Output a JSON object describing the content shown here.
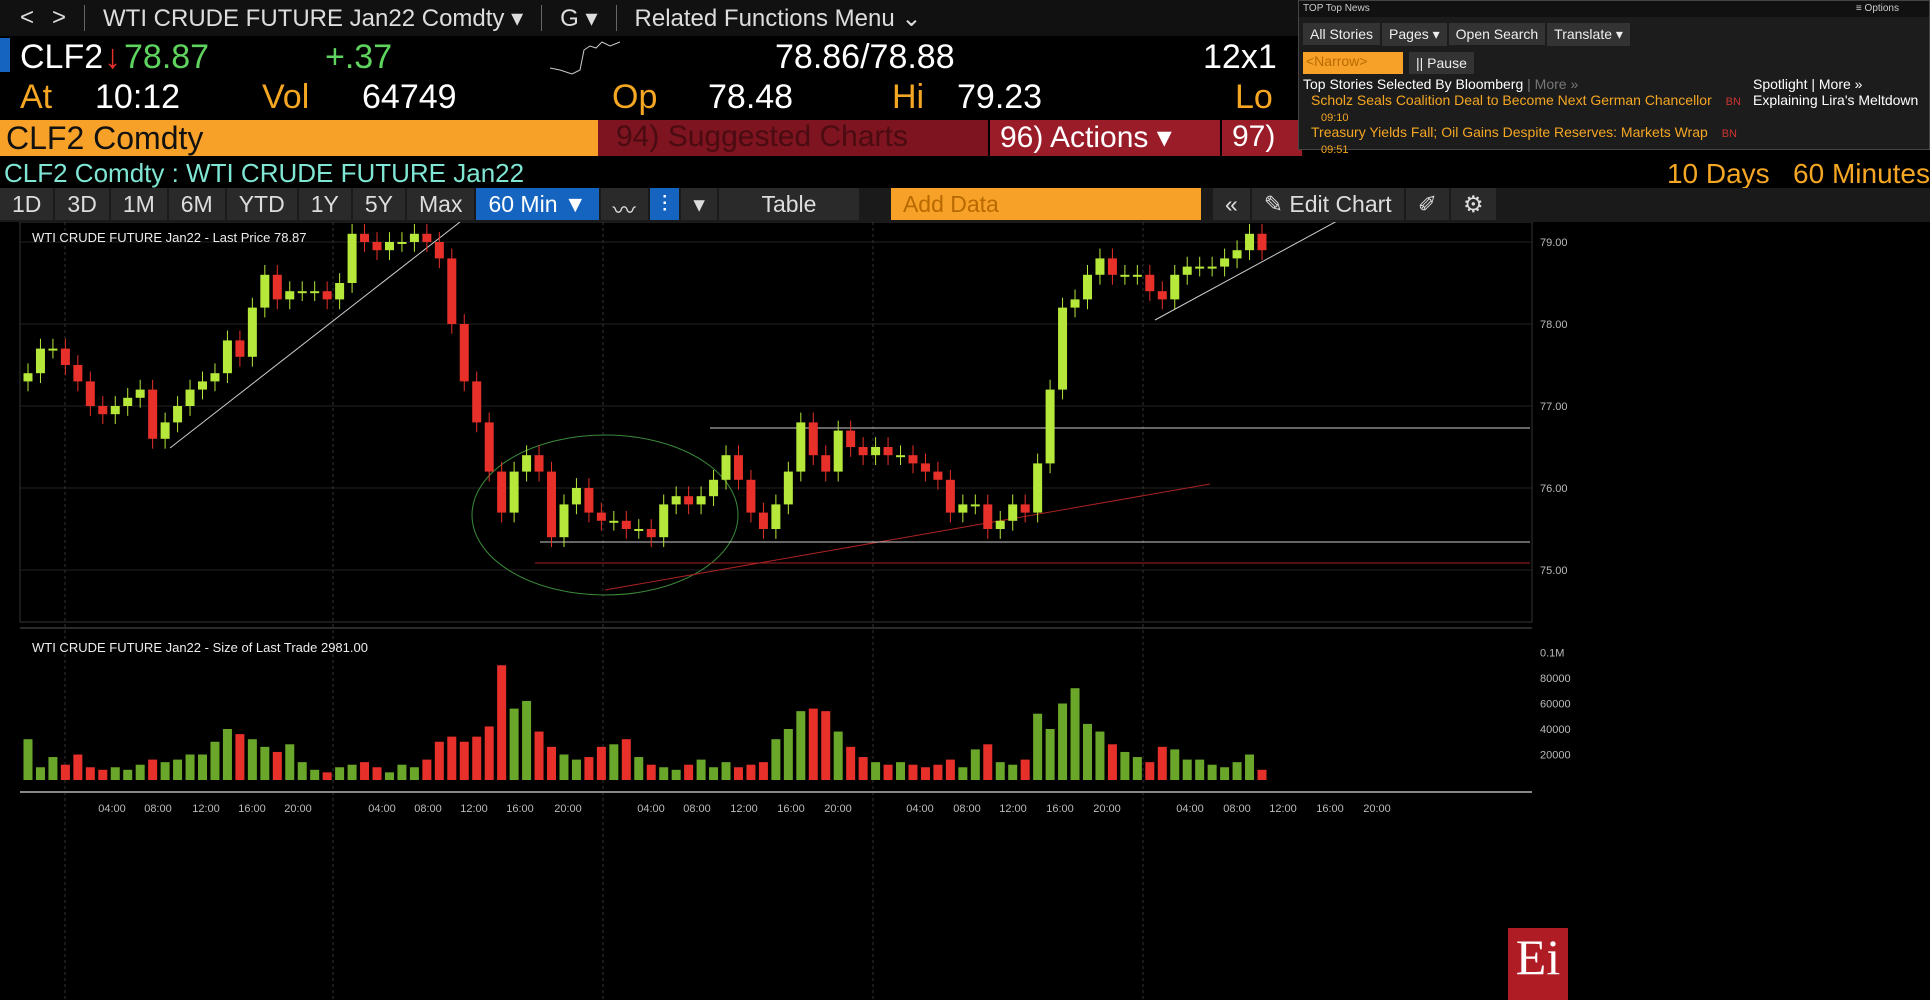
{
  "topbar": {
    "back": "<",
    "forward": ">",
    "security": "WTI CRUDE FUTURE Jan22 Comdty ▾",
    "g": "G ▾",
    "related": "Related Functions Menu ⌄"
  },
  "quote": {
    "ticker": "CLF2",
    "arrow": "↓",
    "last": "78.87",
    "change": "+.37",
    "bid_ask": "78.86/78.88",
    "size": "12x1",
    "at_label": "At",
    "time": "10:12",
    "vol_label": "Vol",
    "vol": "64749",
    "op_label": "Op",
    "open": "78.48",
    "hi_label": "Hi",
    "high": "79.23",
    "lo_label": "Lo"
  },
  "commandbar": {
    "ticker": "CLF2 Comdty",
    "suggested": "94) Suggested Charts",
    "actions": "96) Actions ▾",
    "more": "97)"
  },
  "subtitle": "CLF2 Comdty : WTI CRUDE FUTURE  Jan22",
  "range": "10 Days",
  "interval": "60 Minutes",
  "toolbar": {
    "periods": [
      "1D",
      "3D",
      "1M",
      "6M",
      "YTD",
      "1Y",
      "5Y",
      "Max"
    ],
    "selected": "60 Min ▼",
    "table": "Table",
    "add_data": "Add Data",
    "edit_chart": "Edit Chart"
  },
  "news": {
    "title": "TOP Top News",
    "options": "≡ Options",
    "buttons": [
      "All Stories",
      "Pages ▾",
      "Open Search",
      "Translate ▾"
    ],
    "narrow": "<Narrow>",
    "pause": "|| Pause",
    "header": "Top Stories Selected By Bloomberg",
    "more": "| More »",
    "stories": [
      {
        "headline": "Scholz Seals Coalition Deal to Become Next German Chancellor",
        "src": "BN",
        "time": "09:10"
      },
      {
        "headline": "Treasury Yields Fall; Oil Gains Despite Reserves: Markets Wrap",
        "src": "BN",
        "time": "09:51"
      }
    ],
    "spotlight": "Spotlight | More »",
    "spotlight_story": "Explaining Lira's Meltdown"
  },
  "chart_data": [
    {
      "type": "candlestick",
      "legend": "WTI CRUDE FUTURE  Jan22 - Last Price 78.87",
      "ylim": [
        74.6,
        79.5
      ],
      "yticks": [
        "79.00",
        "78.00",
        "77.00",
        "76.00",
        "75.00"
      ],
      "closes": [
        77.4,
        77.7,
        77.7,
        77.5,
        77.3,
        77.0,
        76.9,
        77.0,
        77.1,
        77.2,
        76.6,
        76.8,
        77.0,
        77.2,
        77.3,
        77.4,
        77.8,
        77.6,
        78.2,
        78.6,
        78.3,
        78.4,
        78.4,
        78.4,
        78.3,
        78.5,
        79.1,
        79.0,
        78.9,
        79.0,
        79.0,
        79.1,
        79.0,
        78.8,
        78.0,
        77.3,
        76.8,
        76.2,
        75.7,
        76.2,
        76.4,
        76.2,
        75.4,
        75.8,
        76.0,
        75.7,
        75.6,
        75.6,
        75.5,
        75.5,
        75.4,
        75.8,
        75.9,
        75.8,
        75.9,
        76.1,
        76.4,
        76.1,
        75.7,
        75.5,
        75.8,
        76.2,
        76.8,
        76.4,
        76.2,
        76.7,
        76.5,
        76.4,
        76.5,
        76.4,
        76.4,
        76.3,
        76.2,
        76.1,
        75.7,
        75.8,
        75.8,
        75.5,
        75.6,
        75.8,
        75.7,
        76.3,
        77.2,
        78.2,
        78.3,
        78.6,
        78.8,
        78.6,
        78.6,
        78.6,
        78.4,
        78.3,
        78.6,
        78.7,
        78.7,
        78.7,
        78.8,
        78.9,
        79.1,
        78.9
      ]
    },
    {
      "type": "bar",
      "legend": "WTI CRUDE FUTURE  Jan22 - Size of Last Trade 2981.00",
      "yticks": [
        "0.1M",
        "80000",
        "60000",
        "40000",
        "20000"
      ],
      "ylim": [
        0,
        100000
      ],
      "values": [
        32000,
        10000,
        18000,
        12000,
        20000,
        10000,
        8000,
        10000,
        8000,
        12000,
        16000,
        14000,
        16000,
        20000,
        20000,
        30000,
        40000,
        36000,
        32000,
        26000,
        22000,
        28000,
        14000,
        8000,
        6000,
        10000,
        12000,
        14000,
        10000,
        6000,
        12000,
        10000,
        16000,
        30000,
        34000,
        30000,
        34000,
        42000,
        90000,
        56000,
        62000,
        38000,
        26000,
        20000,
        16000,
        18000,
        26000,
        28000,
        32000,
        18000,
        12000,
        10000,
        8000,
        12000,
        16000,
        10000,
        14000,
        10000,
        12000,
        14000,
        32000,
        40000,
        54000,
        56000,
        54000,
        38000,
        26000,
        18000,
        14000,
        12000,
        14000,
        12000,
        10000,
        12000,
        16000,
        10000,
        24000,
        28000,
        14000,
        12000,
        16000,
        52000,
        40000,
        60000,
        72000,
        44000,
        38000,
        28000,
        22000,
        18000,
        14000,
        26000,
        24000,
        16000,
        16000,
        12000,
        10000,
        14000,
        20000,
        8000
      ]
    },
    {
      "xticks": [
        "04:00",
        "08:00",
        "12:00",
        "16:00",
        "20:00",
        "04:00",
        "08:00",
        "12:00",
        "16:00",
        "20:00",
        "04:00",
        "08:00",
        "12:00",
        "16:00",
        "20:00",
        "04:00",
        "08:00",
        "12:00",
        "16:00",
        "20:00",
        "04:00",
        "08:00",
        "12:00",
        "16:00",
        "20:00"
      ]
    }
  ],
  "colors": {
    "up": "#b5e83a",
    "down": "#e8302a",
    "volume_up": "#6aa62a",
    "accent": "#f7a128"
  }
}
